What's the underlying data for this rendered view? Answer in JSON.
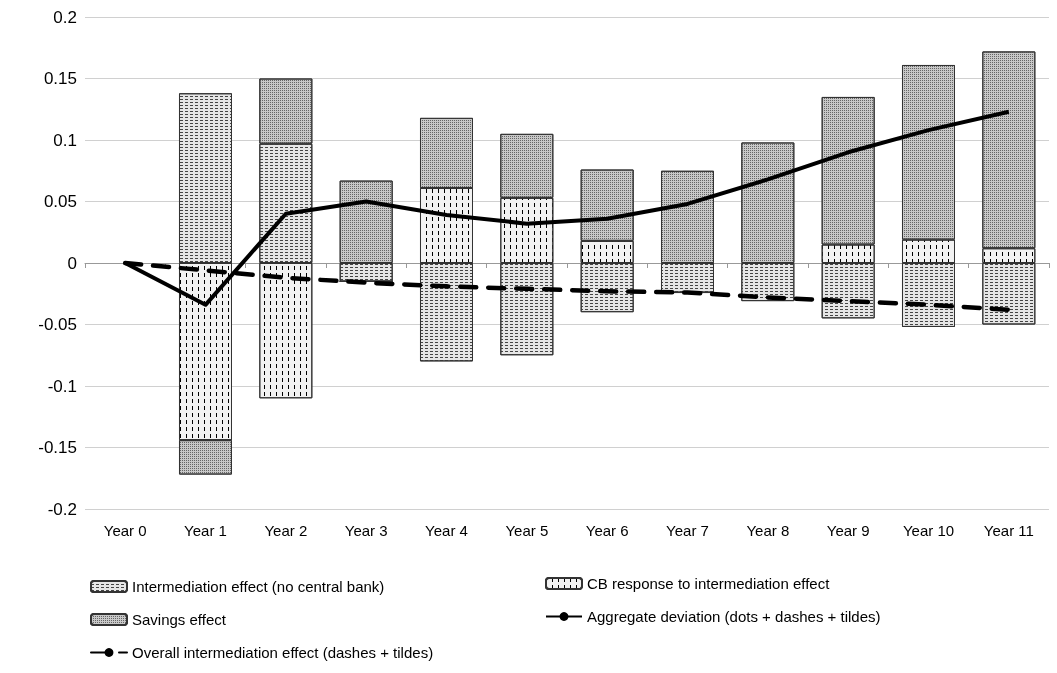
{
  "chart_data": {
    "type": "bar",
    "stacked": true,
    "categories": [
      "Year 0",
      "Year 1",
      "Year 2",
      "Year 3",
      "Year 4",
      "Year 5",
      "Year 6",
      "Year 7",
      "Year 8",
      "Year 9",
      "Year 10",
      "Year 11"
    ],
    "series": [
      {
        "name": "Intermediation effect (no central bank)",
        "color": "#e6e6e6",
        "values": [
          null,
          0.138,
          0.097,
          -0.015,
          -0.08,
          -0.075,
          -0.04,
          -0.024,
          -0.031,
          -0.045,
          -0.052,
          -0.05
        ]
      },
      {
        "name": "CB response to intermediation effect",
        "color": "#f2f2f2",
        "values": [
          null,
          -0.144,
          -0.11,
          0,
          0.061,
          0.053,
          0.018,
          0,
          null,
          0.015,
          0.019,
          0.012
        ]
      },
      {
        "name": "Savings effect",
        "color": "#c8c8c8",
        "values": [
          null,
          -0.028,
          0.053,
          0.067,
          0.057,
          0.052,
          0.058,
          0.075,
          0.098,
          0.12,
          0.142,
          0.16
        ]
      },
      {
        "name": "Aggregate deviation (dots + dashes + tildes)",
        "type": "line",
        "color": "#000000",
        "line_style": "solid",
        "values": [
          0,
          -0.034,
          0.04,
          0.05,
          0.039,
          0.032,
          0.036,
          0.048,
          0.068,
          0.09,
          0.108,
          0.123
        ]
      },
      {
        "name": "Overall intermediation effect (dashes + tildes)",
        "type": "line",
        "color": "#000000",
        "line_style": "dashed",
        "values": [
          0,
          -0.006,
          -0.012,
          -0.016,
          -0.019,
          -0.021,
          -0.023,
          -0.024,
          -0.028,
          -0.031,
          -0.034,
          -0.038
        ]
      }
    ],
    "ylim": [
      -0.2,
      0.2
    ],
    "yticks": [
      -0.2,
      -0.15,
      -0.1,
      -0.05,
      0,
      0.05,
      0.1,
      0.15,
      0.2
    ],
    "grid": "y",
    "legend": "bottom",
    "marker": "none"
  }
}
